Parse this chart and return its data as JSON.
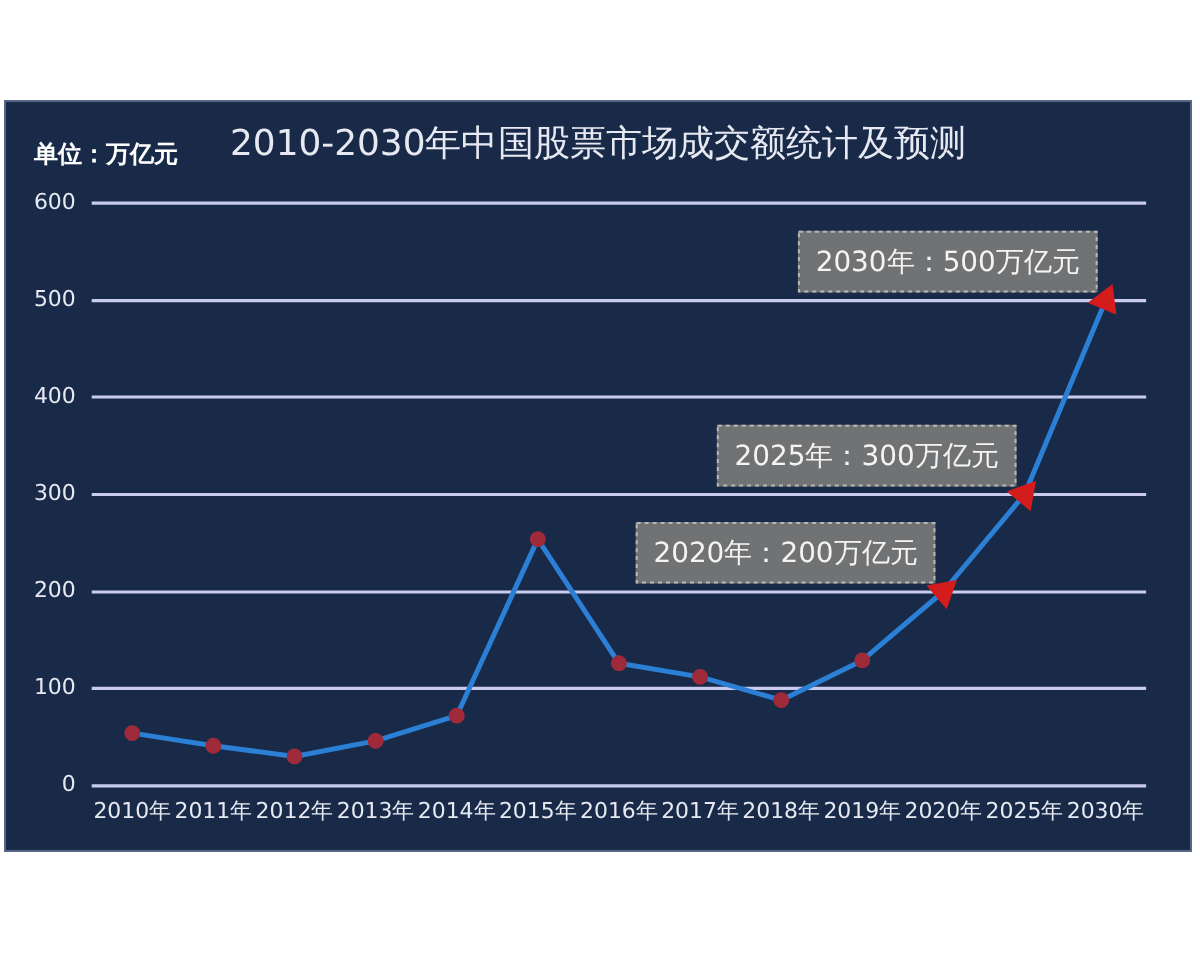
{
  "chart_data": {
    "type": "line",
    "title": "2010-2030年中国股票市场成交额统计及预测",
    "ylabel": "单位：万亿元",
    "categories": [
      "2010年",
      "2011年",
      "2012年",
      "2013年",
      "2014年",
      "2015年",
      "2016年",
      "2017年",
      "2018年",
      "2019年",
      "2020年",
      "2025年",
      "2030年"
    ],
    "series": [
      {
        "color": "#2b7fd4",
        "marker": "circle",
        "colors": [
          "#9e2a3a",
          "#9e2a3a",
          "#9e2a3a",
          "#9e2a3a",
          "#9e2a3a",
          "#9e2a3a",
          "#9e2a3a",
          "#9e2a3a",
          "#9e2a3a",
          "#9e2a3a",
          null,
          null,
          null
        ],
        "values": [
          54,
          41,
          30,
          46,
          72,
          254,
          126,
          112,
          88,
          129,
          null,
          null,
          null
        ]
      },
      {
        "color": "#2b7fd4",
        "marker": "triangle",
        "colors": [
          null,
          null,
          null,
          null,
          null,
          null,
          null,
          null,
          null,
          null,
          "#d41c1c",
          "#d41c1c",
          "#d41c1c"
        ],
        "values": [
          null,
          null,
          null,
          null,
          null,
          null,
          null,
          null,
          null,
          129,
          200,
          300,
          500
        ]
      }
    ],
    "ylim": [
      0,
      600
    ],
    "yticks": [
      0,
      100,
      200,
      300,
      400,
      500,
      600
    ],
    "grid": "y",
    "legend": false,
    "line_style": "solid",
    "annotations": [
      {
        "text": "2020年：200万亿元",
        "x": "2020年",
        "y": 200
      },
      {
        "text": "2025年：300万亿元",
        "x": "2025年",
        "y": 300
      },
      {
        "text": "2030年：500万亿元",
        "x": "2030年",
        "y": 500
      }
    ]
  }
}
